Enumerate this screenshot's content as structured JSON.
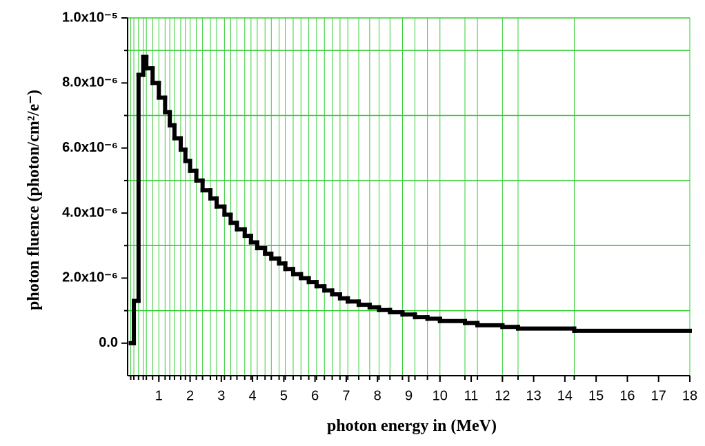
{
  "chart_data": {
    "type": "histogram",
    "xlabel": "photon energy in (MeV)",
    "ylabel": "photon fluence (photon/cm²/e⁻)",
    "bins": [
      0.1,
      0.2,
      0.35,
      0.5,
      0.6,
      0.8,
      1.0,
      1.2,
      1.35,
      1.5,
      1.7,
      1.85,
      2.0,
      2.2,
      2.4,
      2.65,
      2.85,
      3.1,
      3.3,
      3.5,
      3.75,
      3.95,
      4.15,
      4.4,
      4.6,
      4.85,
      5.05,
      5.3,
      5.55,
      5.8,
      6.05,
      6.3,
      6.55,
      6.8,
      7.05,
      7.4,
      7.75,
      8.05,
      8.4,
      8.8,
      9.2,
      9.6,
      10.0,
      10.8,
      11.2,
      12.0,
      12.5,
      14.3,
      18.0
    ],
    "values": [
      0,
      1.3e-06,
      8.25e-06,
      8.8e-06,
      8.45e-06,
      8e-06,
      7.55e-06,
      7.1e-06,
      6.7e-06,
      6.3e-06,
      5.95e-06,
      5.6e-06,
      5.3e-06,
      5e-06,
      4.7e-06,
      4.45e-06,
      4.2e-06,
      3.95e-06,
      3.7e-06,
      3.5e-06,
      3.3e-06,
      3.1e-06,
      2.92e-06,
      2.75e-06,
      2.6e-06,
      2.45e-06,
      2.28e-06,
      2.12e-06,
      2e-06,
      1.88e-06,
      1.75e-06,
      1.62e-06,
      1.5e-06,
      1.38e-06,
      1.28e-06,
      1.18e-06,
      1.1e-06,
      1.02e-06,
      9.5e-07,
      8.8e-07,
      8e-07,
      7.5e-07,
      6.8e-07,
      6.2e-07,
      5.5e-07,
      5e-07,
      4.5e-07,
      3.8e-07
    ],
    "color": "#000000",
    "grid_color": "#33cc33",
    "xlim": [
      0,
      18
    ],
    "xticks": [
      1,
      2,
      3,
      4,
      5,
      6,
      7,
      8,
      9,
      10,
      11,
      12,
      13,
      14,
      15,
      16,
      17,
      18
    ],
    "ylim": [
      -1e-06,
      1e-05
    ],
    "yticks": [
      {
        "value": 0,
        "label": "0.0"
      },
      {
        "value": 2e-06,
        "label": "2.0x10⁻⁶"
      },
      {
        "value": 4e-06,
        "label": "4.0x10⁻⁶"
      },
      {
        "value": 6e-06,
        "label": "6.0x10⁻⁶"
      },
      {
        "value": 8e-06,
        "label": "8.0x10⁻⁶"
      },
      {
        "value": 1e-05,
        "label": "1.0x10⁻⁵"
      }
    ],
    "ygrid": [
      1e-06,
      3e-06,
      5e-06,
      7e-06,
      9e-06,
      1e-05
    ]
  }
}
